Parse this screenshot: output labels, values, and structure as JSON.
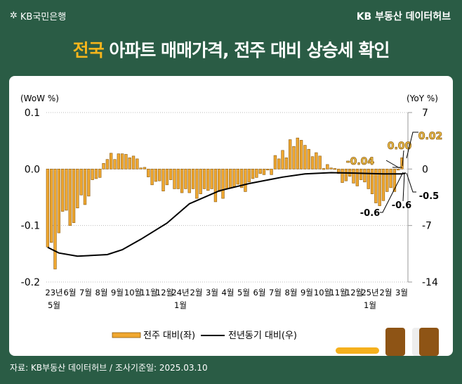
{
  "header": {
    "bank": "KB국민은행",
    "hub": "KB 부동산 데이터허브",
    "title_highlight": "전국",
    "title_rest": " 아파트 매매가격, 전주 대비 상승세 확인"
  },
  "footer": {
    "source": "자료: KB부동산 데이터허브 / 조사기준일: 2025.03.10"
  },
  "chart_data": {
    "type": "bar+line",
    "left_axis_label": "(WoW %)",
    "right_axis_label": "(YoY %)",
    "left_ticks": [
      "0.1",
      "0.0",
      "-0.1",
      "-0.2"
    ],
    "left_ylim": [
      -0.2,
      0.1
    ],
    "right_ticks": [
      "7",
      "0",
      "-7",
      "-14"
    ],
    "right_ylim": [
      -14,
      7
    ],
    "x_ticks": [
      [
        "23년",
        "5월"
      ],
      [
        "6월"
      ],
      [
        "7월"
      ],
      [
        "8월"
      ],
      [
        "9월"
      ],
      [
        "10월"
      ],
      [
        "11월"
      ],
      [
        "12월"
      ],
      [
        "24년",
        "1월"
      ],
      [
        "2월"
      ],
      [
        "3월"
      ],
      [
        "4월"
      ],
      [
        "5월"
      ],
      [
        "6월"
      ],
      [
        "7월"
      ],
      [
        "8월"
      ],
      [
        "9월"
      ],
      [
        "10월"
      ],
      [
        "11월"
      ],
      [
        "12월"
      ],
      [
        "25년",
        "1월"
      ],
      [
        "2월"
      ],
      [
        "3월"
      ]
    ],
    "series": [
      {
        "name": "전주 대비(좌)",
        "type": "bar",
        "color": "#f0a830",
        "values": [
          -0.138,
          -0.13,
          -0.177,
          -0.113,
          -0.075,
          -0.073,
          -0.1,
          -0.095,
          -0.069,
          -0.046,
          -0.063,
          -0.048,
          -0.019,
          -0.017,
          -0.015,
          0.01,
          0.017,
          0.028,
          0.017,
          0.027,
          0.027,
          0.026,
          0.02,
          0.023,
          0.018,
          0.002,
          0.003,
          -0.014,
          -0.028,
          -0.022,
          -0.021,
          -0.039,
          -0.028,
          -0.019,
          -0.035,
          -0.035,
          -0.042,
          -0.035,
          -0.042,
          -0.035,
          -0.052,
          -0.044,
          -0.035,
          -0.038,
          -0.035,
          -0.058,
          -0.04,
          -0.052,
          -0.035,
          -0.033,
          -0.031,
          -0.027,
          -0.033,
          -0.04,
          -0.023,
          -0.017,
          -0.015,
          -0.008,
          -0.01,
          0.0,
          -0.01,
          0.024,
          0.018,
          0.033,
          0.02,
          0.052,
          0.04,
          0.055,
          0.051,
          0.042,
          0.035,
          0.022,
          0.029,
          0.023,
          0.001,
          0.008,
          0.002,
          0.001,
          -0.008,
          -0.024,
          -0.021,
          -0.013,
          -0.025,
          -0.03,
          -0.019,
          -0.023,
          -0.035,
          -0.044,
          -0.06,
          -0.065,
          -0.056,
          -0.04,
          -0.033,
          -0.04,
          0.0,
          0.02
        ]
      },
      {
        "name": "전년동기 대비(우)",
        "type": "line",
        "color": "#000000",
        "points": [
          [
            0,
            -9.7
          ],
          [
            3,
            -10.4
          ],
          [
            8,
            -10.8
          ],
          [
            16,
            -10.6
          ],
          [
            20,
            -10.0
          ],
          [
            25,
            -8.7
          ],
          [
            32,
            -6.7
          ],
          [
            38,
            -4.3
          ],
          [
            46,
            -2.7
          ],
          [
            54,
            -1.8
          ],
          [
            63,
            -1.0
          ],
          [
            69,
            -0.6
          ],
          [
            76,
            -0.45
          ],
          [
            82,
            -0.5
          ],
          [
            90,
            -0.6
          ],
          [
            95,
            -0.6
          ],
          [
            96,
            -0.5
          ]
        ]
      }
    ],
    "annotations": {
      "wow": [
        "-0.04",
        "0.00",
        "0.02"
      ],
      "yoy": [
        "-0.6",
        "-0.6",
        "-0.5"
      ]
    },
    "legend": {
      "position": "bottom"
    }
  }
}
